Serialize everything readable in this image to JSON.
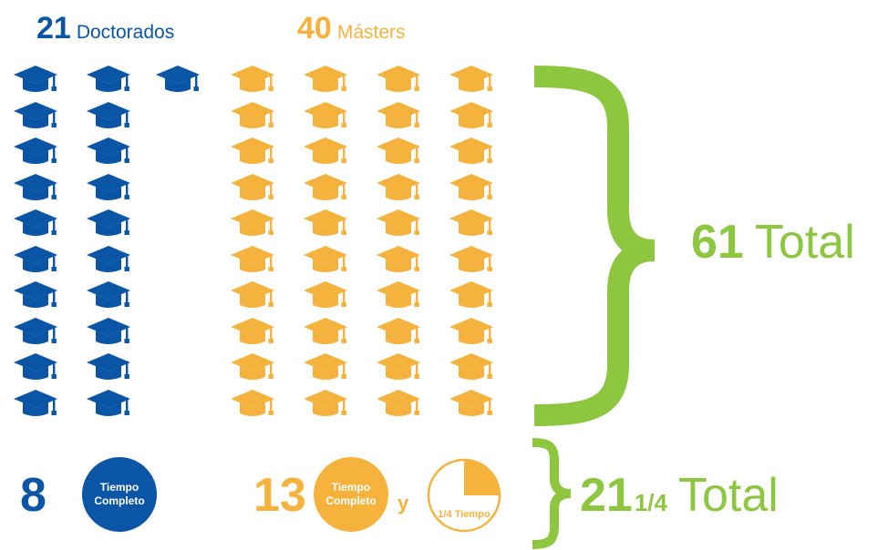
{
  "colors": {
    "doctor": "#0a55a5",
    "master": "#f5b23d",
    "total": "#8dc63f"
  },
  "doctorados": {
    "count": "21",
    "label": "Doctorados",
    "icon": "graduation-cap-icon"
  },
  "masters": {
    "count": "40",
    "label": "Másters",
    "icon": "graduation-cap-icon"
  },
  "grand_total": {
    "count": "61",
    "label": "Total"
  },
  "fulltime": {
    "doctor_count": "8",
    "doctor_badge": [
      "Tiempo",
      "Completo"
    ],
    "master_count": "13",
    "master_badge": [
      "Tiempo",
      "Completo"
    ],
    "conjunction": "y",
    "quarter_badge": "1/4 Tiempo",
    "quarter_fraction": 0.25,
    "total_whole": "21",
    "total_fraction": "1/4",
    "total_label": "Total"
  }
}
